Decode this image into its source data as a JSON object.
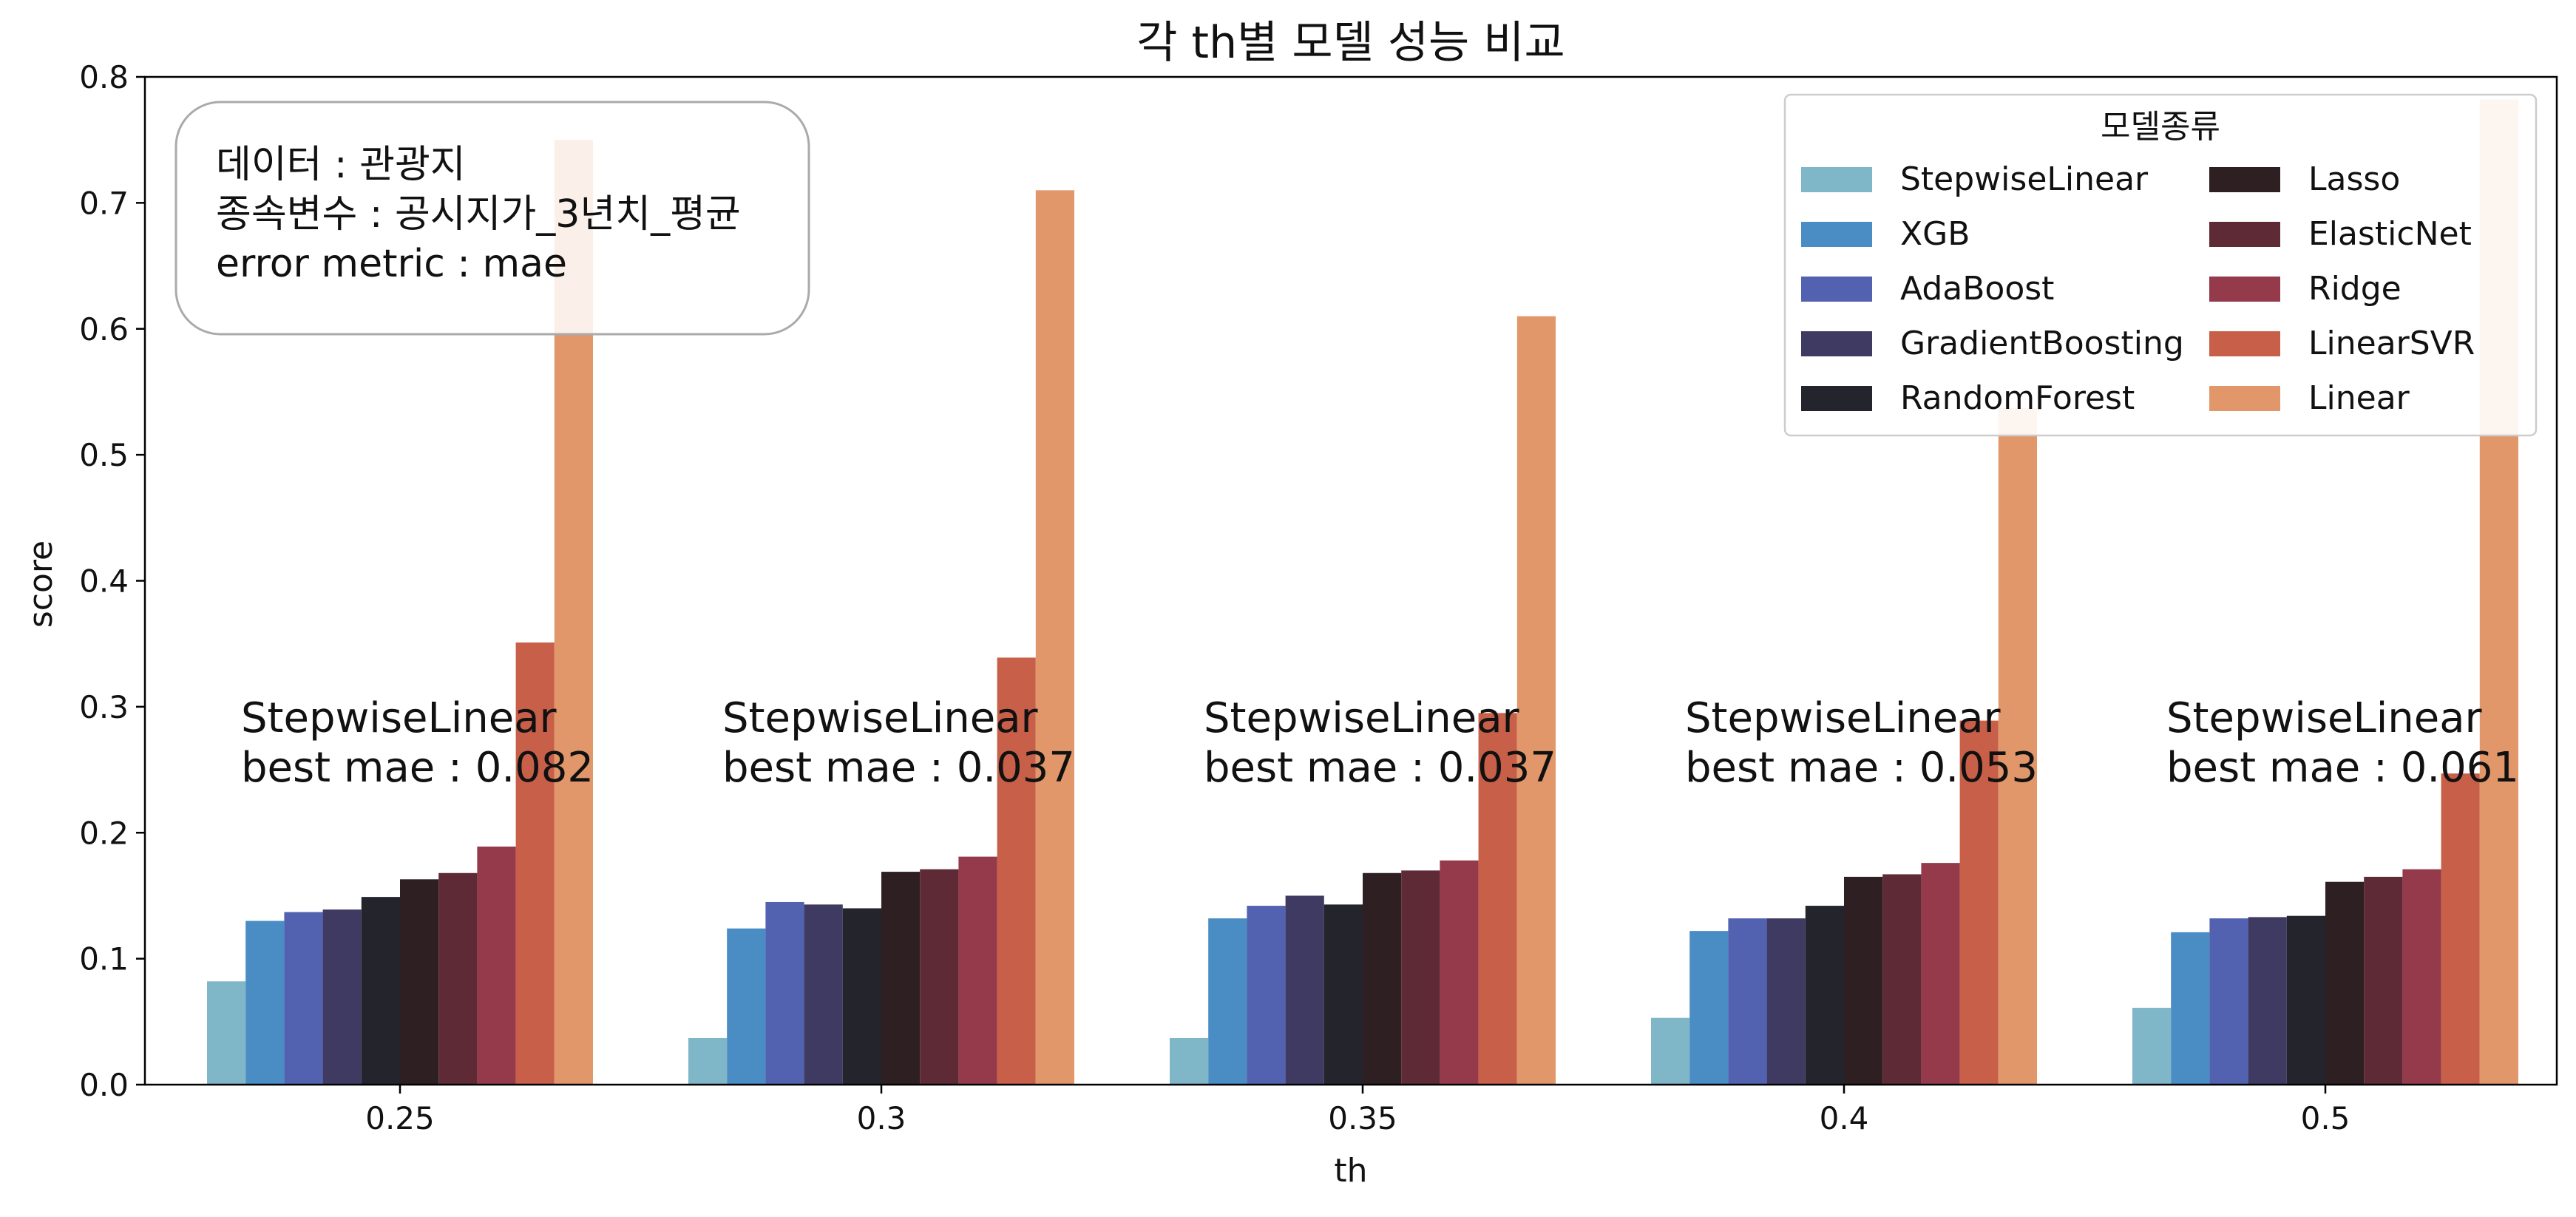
{
  "chart_data": {
    "type": "bar",
    "title": "각 th별 모델 성능 비교",
    "xlabel": "th",
    "ylabel": "score",
    "ylim": [
      0,
      0.8
    ],
    "yticks": [
      "0.0",
      "0.1",
      "0.2",
      "0.3",
      "0.4",
      "0.5",
      "0.6",
      "0.7",
      "0.8"
    ],
    "categories": [
      "0.25",
      "0.3",
      "0.35",
      "0.4",
      "0.5"
    ],
    "grid": false,
    "legend_position": "top-right",
    "legend_title": "모델종류",
    "series": [
      {
        "name": "StepwiseLinear",
        "color": "#7fb6c8",
        "values": [
          0.082,
          0.037,
          0.037,
          0.053,
          0.061
        ]
      },
      {
        "name": "XGB",
        "color": "#4a8cc4",
        "values": [
          0.13,
          0.124,
          0.132,
          0.122,
          0.121
        ]
      },
      {
        "name": "AdaBoost",
        "color": "#5262b0",
        "values": [
          0.137,
          0.145,
          0.142,
          0.132,
          0.132
        ]
      },
      {
        "name": "GradientBoosting",
        "color": "#3e3a62",
        "values": [
          0.139,
          0.143,
          0.15,
          0.132,
          0.133
        ]
      },
      {
        "name": "RandomForest",
        "color": "#23242c",
        "values": [
          0.149,
          0.14,
          0.143,
          0.142,
          0.134
        ]
      },
      {
        "name": "Lasso",
        "color": "#2e1f22",
        "values": [
          0.163,
          0.169,
          0.168,
          0.165,
          0.161
        ]
      },
      {
        "name": "ElasticNet",
        "color": "#5e2a36",
        "values": [
          0.168,
          0.171,
          0.17,
          0.167,
          0.165
        ]
      },
      {
        "name": "Ridge",
        "color": "#943a4b",
        "values": [
          0.189,
          0.181,
          0.178,
          0.176,
          0.171
        ]
      },
      {
        "name": "LinearSVR",
        "color": "#c85f48",
        "values": [
          0.351,
          0.339,
          0.295,
          0.289,
          0.247
        ]
      },
      {
        "name": "Linear",
        "color": "#e1976a",
        "values": [
          0.75,
          0.71,
          0.61,
          0.537,
          0.782
        ]
      }
    ],
    "annotations": [
      {
        "line1": "StepwiseLinear",
        "line2": "best mae : 0.082"
      },
      {
        "line1": "StepwiseLinear",
        "line2": "best mae : 0.037"
      },
      {
        "line1": "StepwiseLinear",
        "line2": "best mae : 0.037"
      },
      {
        "line1": "StepwiseLinear",
        "line2": "best mae : 0.053"
      },
      {
        "line1": "StepwiseLinear",
        "line2": "best mae : 0.061"
      }
    ],
    "info_box": [
      "데이터 : 관광지",
      "종속변수 : 공시지가_3년치_평균",
      "error metric : mae"
    ]
  }
}
